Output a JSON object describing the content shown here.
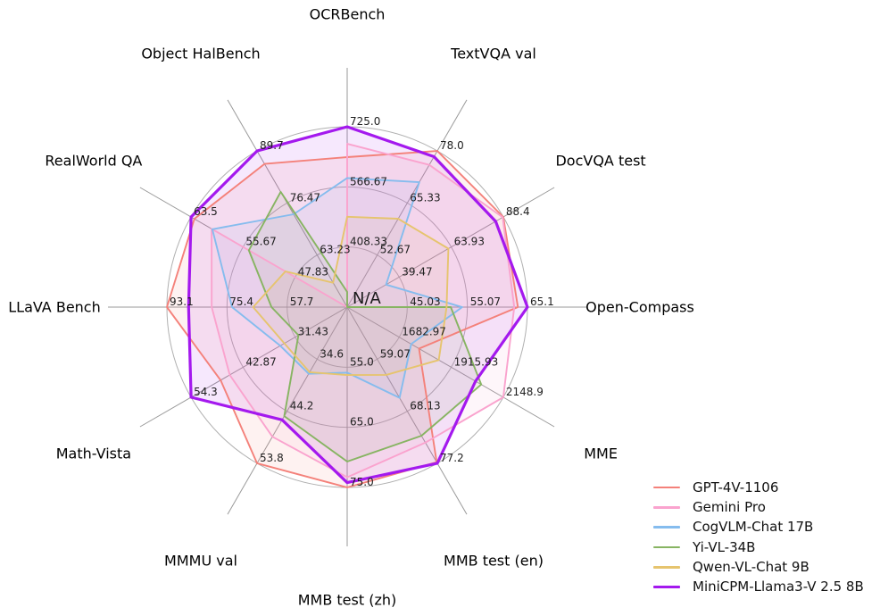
{
  "chart_data": {
    "type": "radar",
    "title": "",
    "center_label": "N/A",
    "grid": {
      "rings": 3,
      "ring_color": "#b0b0b0",
      "spoke_color": "#9a9a9a",
      "legend_position": "lower right"
    },
    "axes": [
      {
        "label": "OCRBench",
        "min": 250,
        "max": 725,
        "ticks": [
          "408.33",
          "566.67",
          "725.0"
        ]
      },
      {
        "label": "TextVQA val",
        "min": 40,
        "max": 78,
        "ticks": [
          "52.67",
          "65.33",
          "78.0"
        ]
      },
      {
        "label": "DocVQA test",
        "min": 15,
        "max": 88.4,
        "ticks": [
          "39.47",
          "63.93",
          "88.4"
        ]
      },
      {
        "label": "Open-Compass",
        "min": 35,
        "max": 65.1,
        "ticks": [
          "45.03",
          "55.07",
          "65.1"
        ]
      },
      {
        "label": "MME",
        "min": 1450,
        "max": 2148.9,
        "ticks": [
          "1682.97",
          "1915.93",
          "2148.9"
        ]
      },
      {
        "label": "MMB test (en)",
        "min": 50,
        "max": 77.2,
        "ticks": [
          "59.07",
          "68.13",
          "77.2"
        ]
      },
      {
        "label": "MMB test (zh)",
        "min": 45,
        "max": 75,
        "ticks": [
          "55.0",
          "65.0",
          "75.0"
        ]
      },
      {
        "label": "MMMU val",
        "min": 25,
        "max": 53.8,
        "ticks": [
          "34.6",
          "44.2",
          "53.8"
        ]
      },
      {
        "label": "Math-Vista",
        "min": 20,
        "max": 54.3,
        "ticks": [
          "31.43",
          "42.87",
          "54.3"
        ]
      },
      {
        "label": "LLaVA Bench",
        "min": 40,
        "max": 93.1,
        "ticks": [
          "57.7",
          "75.4",
          "93.1"
        ]
      },
      {
        "label": "RealWorld QA",
        "min": 40,
        "max": 63.5,
        "ticks": [
          "47.83",
          "55.67",
          "63.5"
        ]
      },
      {
        "label": "Object HalBench",
        "min": 50,
        "max": 89.7,
        "ticks": [
          "63.23",
          "76.47",
          "89.7"
        ]
      }
    ],
    "series": [
      {
        "name": "GPT-4V-1106",
        "color": "#f4817a",
        "line_width": 1.9,
        "values": [
          645,
          78.0,
          88.4,
          63.5,
          1771.5,
          77.0,
          75.0,
          53.8,
          47.8,
          93.1,
          63.0,
          86.4
        ]
      },
      {
        "name": "Gemini Pro",
        "color": "#faa3ce",
        "line_width": 1.9,
        "values": [
          680,
          74.6,
          88.1,
          62.9,
          2148.9,
          73.6,
          73.3,
          48.9,
          45.8,
          79.9,
          60.4,
          null
        ]
      },
      {
        "name": "CogVLM-Chat 17B",
        "color": "#85bcee",
        "line_width": 1.9,
        "values": [
          590,
          70.4,
          33.3,
          54.2,
          1736.6,
          65.8,
          55.9,
          37.3,
          34.7,
          73.9,
          60.3,
          73.6
        ]
      },
      {
        "name": "Yi-VL-34B",
        "color": "#87b462",
        "line_width": 1.9,
        "values": [
          290,
          null,
          null,
          52.3,
          2050.2,
          72.4,
          70.7,
          45.1,
          30.7,
          62.3,
          54.8,
          79.3
        ]
      },
      {
        "name": "Qwen-VL-Chat 9B",
        "color": "#e6c46e",
        "line_width": 1.9,
        "values": [
          488,
          61.5,
          62.6,
          51.6,
          1860.0,
          61.8,
          56.3,
          37.0,
          33.8,
          67.7,
          49.3,
          56.2
        ]
      },
      {
        "name": "MiniCPM-Llama3-V 2.5 8B",
        "color": "#a419ee",
        "line_width": 3.2,
        "values": [
          725,
          76.6,
          84.8,
          65.1,
          2024.6,
          77.2,
          74.2,
          45.8,
          54.3,
          86.7,
          63.5,
          89.7
        ]
      }
    ]
  }
}
